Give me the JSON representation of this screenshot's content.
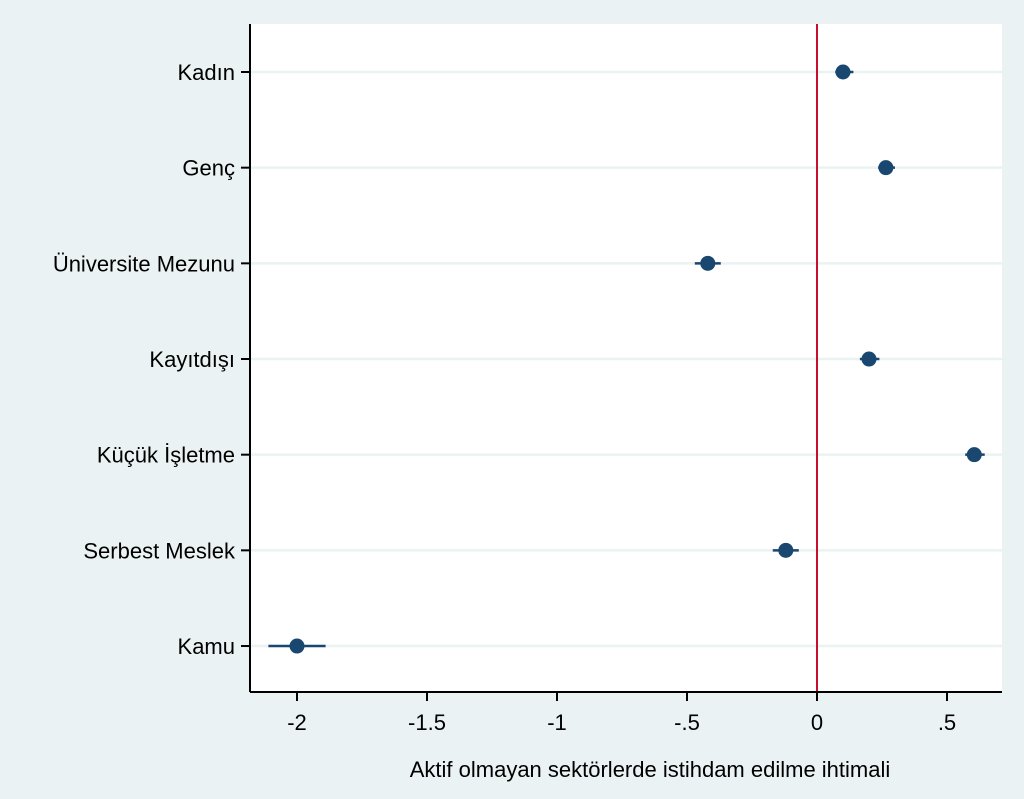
{
  "chart_data": {
    "type": "scatter",
    "subtype": "coefficient-plot",
    "title": "",
    "xlabel": "Aktif olmayan sektörlerde istihdam edilme ihtimali",
    "ylabel": "",
    "xlim": [
      -2.2,
      0.72
    ],
    "x_ticks": [
      {
        "value": -2,
        "label": "-2"
      },
      {
        "value": -1.5,
        "label": "-1.5"
      },
      {
        "value": -1,
        "label": "-1"
      },
      {
        "value": -0.5,
        "label": "-.5"
      },
      {
        "value": 0,
        "label": "0"
      },
      {
        "value": 0.5,
        "label": ".5"
      }
    ],
    "reference_line": {
      "x": 0,
      "color": "#c8102e"
    },
    "grid": true,
    "legend": "none",
    "colors": {
      "background": "#eaf2f3",
      "plot_background": "#ffffff",
      "marker": "#1a476f",
      "gridline": "#eaf2f3"
    },
    "points": [
      {
        "label": "Kadın",
        "estimate": 0.1,
        "ci_low": 0.07,
        "ci_high": 0.14
      },
      {
        "label": "Genç",
        "estimate": 0.265,
        "ci_low": 0.235,
        "ci_high": 0.3
      },
      {
        "label": "Üniversite Mezunu",
        "estimate": -0.42,
        "ci_low": -0.47,
        "ci_high": -0.37
      },
      {
        "label": "Kayıtdışı",
        "estimate": 0.2,
        "ci_low": 0.165,
        "ci_high": 0.24
      },
      {
        "label": "Küçük İşletme",
        "estimate": 0.605,
        "ci_low": 0.57,
        "ci_high": 0.645
      },
      {
        "label": "Serbest Meslek",
        "estimate": -0.12,
        "ci_low": -0.17,
        "ci_high": -0.07
      },
      {
        "label": "Kamu",
        "estimate": -2.0,
        "ci_low": -2.11,
        "ci_high": -1.89
      }
    ]
  }
}
